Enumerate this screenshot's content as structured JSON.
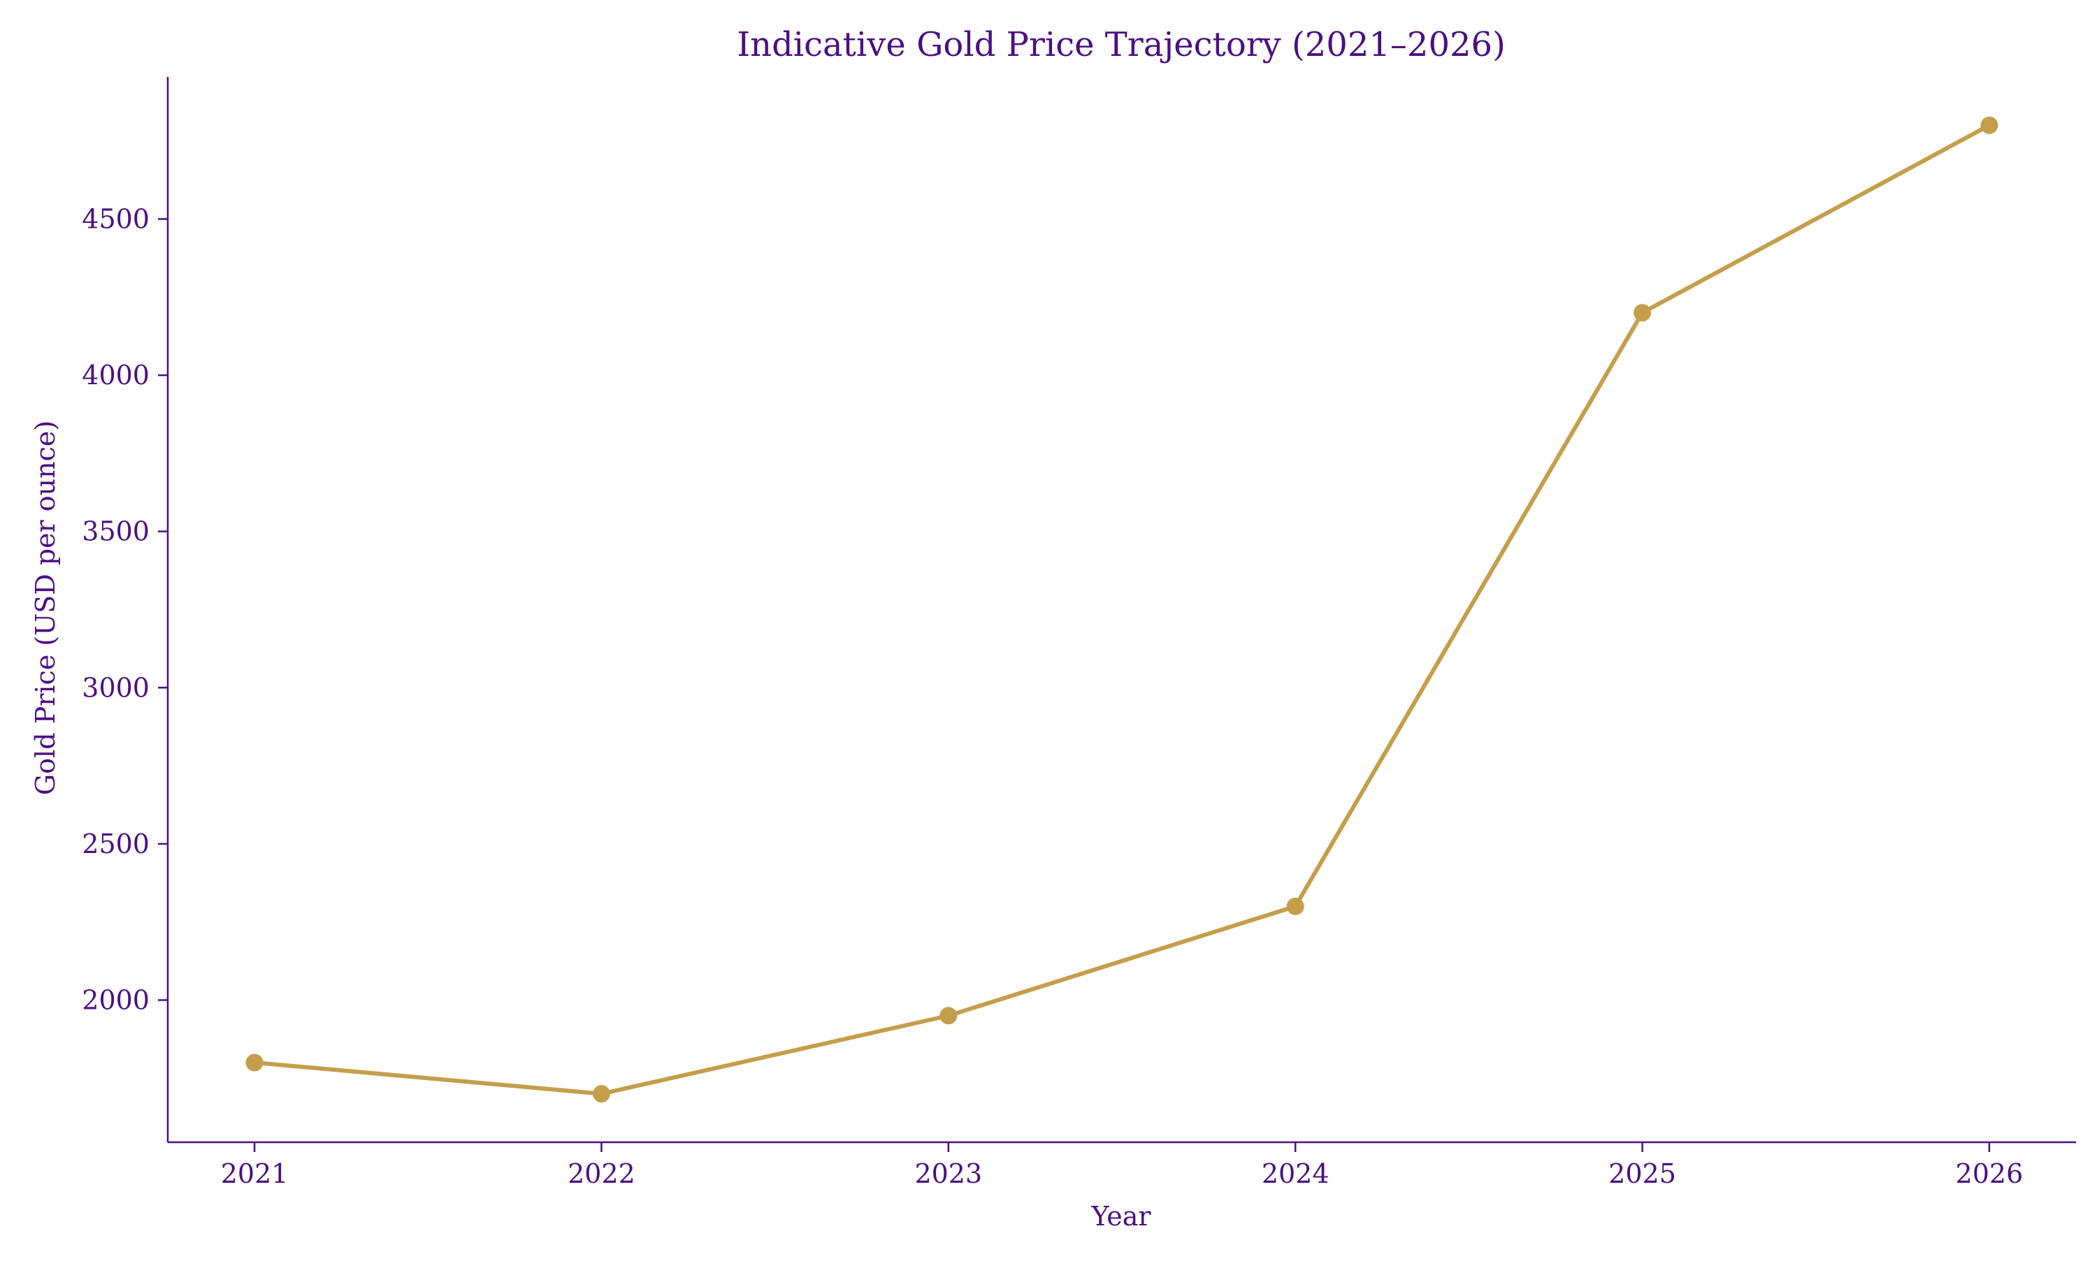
{
  "chart_data": {
    "type": "line",
    "title": "Indicative Gold Price Trajectory (2021–2026)",
    "xlabel": "Year",
    "ylabel": "Gold Price (USD per ounce)",
    "x": [
      2021,
      2022,
      2023,
      2024,
      2025,
      2026
    ],
    "x_tick_labels": [
      "2021",
      "2022",
      "2023",
      "2024",
      "2025",
      "2026"
    ],
    "series": [
      {
        "values": [
          1800,
          1700,
          1950,
          2300,
          4200,
          4800
        ]
      }
    ],
    "xlim": [
      2020.75,
      2026.25
    ],
    "ylim": [
      1545,
      4955
    ],
    "y_ticks": [
      2000,
      2500,
      3000,
      3500,
      4000,
      4500
    ],
    "y_tick_labels": [
      "2000",
      "2500",
      "3000",
      "3500",
      "4000",
      "4500"
    ],
    "grid": false,
    "legend": "none",
    "colors": {
      "line": "#c49e4b",
      "text": "#4b0f82",
      "axis": "#4b0f82"
    }
  }
}
